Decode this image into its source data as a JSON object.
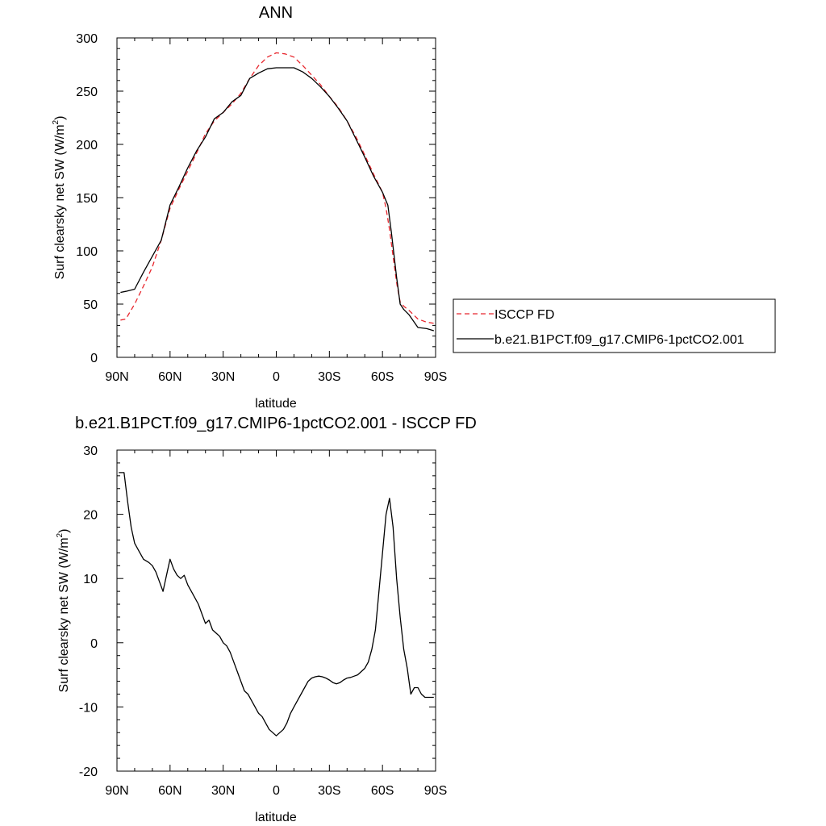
{
  "chart_data": [
    {
      "type": "line",
      "title": "ANN",
      "xlabel": "latitude",
      "ylabel": "Surf clearsky net SW (W/m",
      "ylabel_sup": "2",
      "ylabel_close": ")",
      "xlim": [
        -90,
        90
      ],
      "ylim": [
        0,
        300
      ],
      "x_ticks": [
        -90,
        -60,
        -30,
        0,
        30,
        60,
        90
      ],
      "x_tick_labels": [
        "90N",
        "60N",
        "30N",
        "0",
        "30S",
        "60S",
        "90S"
      ],
      "y_ticks": [
        0,
        50,
        100,
        150,
        200,
        250,
        300
      ],
      "y_tick_labels": [
        "0",
        "50",
        "100",
        "150",
        "200",
        "250",
        "300"
      ],
      "grid": false,
      "legend_position": "right",
      "series": [
        {
          "name": "ISCCP FD",
          "color": "#e8262d",
          "dash": "dashed",
          "x": [
            -88,
            -85,
            -80,
            -75,
            -70,
            -65,
            -60,
            -55,
            -50,
            -45,
            -40,
            -35,
            -30,
            -25,
            -20,
            -15,
            -10,
            -5,
            0,
            5,
            10,
            15,
            20,
            25,
            30,
            35,
            40,
            45,
            50,
            55,
            60,
            62,
            64,
            66,
            68,
            70,
            72,
            75,
            80,
            85,
            89
          ],
          "values": [
            35,
            36,
            50,
            67,
            85,
            110,
            140,
            158,
            175,
            192,
            210,
            222,
            230,
            238,
            248,
            262,
            274,
            282,
            286,
            285,
            282,
            274,
            265,
            256,
            245,
            235,
            222,
            207,
            190,
            172,
            155,
            140,
            120,
            95,
            70,
            52,
            48,
            44,
            36,
            33,
            32
          ]
        },
        {
          "name": "b.e21.B1PCT.f09_g17.CMIP6-1pctCO2.001",
          "color": "#000000",
          "dash": "solid",
          "x": [
            -88,
            -85,
            -80,
            -75,
            -70,
            -65,
            -60,
            -55,
            -50,
            -45,
            -40,
            -35,
            -30,
            -25,
            -20,
            -15,
            -10,
            -5,
            0,
            5,
            10,
            15,
            20,
            25,
            30,
            35,
            40,
            45,
            50,
            55,
            60,
            63,
            65,
            68,
            70,
            72,
            75,
            80,
            85,
            89
          ],
          "values": [
            61,
            62,
            64,
            80,
            95,
            110,
            143,
            160,
            178,
            194,
            207,
            224,
            230,
            240,
            246,
            262,
            267,
            271,
            272,
            272,
            272,
            268,
            262,
            254,
            245,
            234,
            222,
            205,
            188,
            170,
            155,
            143,
            118,
            75,
            50,
            45,
            40,
            28,
            27,
            25
          ]
        }
      ]
    },
    {
      "type": "line",
      "title": "b.e21.B1PCT.f09_g17.CMIP6-1pctCO2.001 - ISCCP FD",
      "xlabel": "latitude",
      "ylabel": "Surf clearsky net SW (W/m",
      "ylabel_sup": "2",
      "ylabel_close": ")",
      "xlim": [
        -90,
        90
      ],
      "ylim": [
        -20,
        30
      ],
      "x_ticks": [
        -90,
        -60,
        -30,
        0,
        30,
        60,
        90
      ],
      "x_tick_labels": [
        "90N",
        "60N",
        "30N",
        "0",
        "30S",
        "60S",
        "90S"
      ],
      "y_ticks": [
        -20,
        -10,
        0,
        10,
        20,
        30
      ],
      "y_tick_labels": [
        "-20",
        "-10",
        "0",
        "10",
        "20",
        "30"
      ],
      "grid": false,
      "series": [
        {
          "color": "#000000",
          "dash": "solid",
          "x": [
            -89,
            -86,
            -84,
            -82,
            -80,
            -77,
            -75,
            -72,
            -70,
            -68,
            -66,
            -64,
            -62,
            -60,
            -58,
            -56,
            -54,
            -52,
            -50,
            -48,
            -46,
            -44,
            -42,
            -40,
            -38,
            -36,
            -34,
            -32,
            -30,
            -28,
            -26,
            -24,
            -22,
            -20,
            -18,
            -16,
            -14,
            -12,
            -10,
            -8,
            -6,
            -4,
            -2,
            0,
            2,
            4,
            6,
            8,
            10,
            12,
            14,
            16,
            18,
            20,
            22,
            24,
            26,
            28,
            30,
            32,
            34,
            36,
            38,
            40,
            42,
            44,
            46,
            48,
            50,
            52,
            54,
            56,
            58,
            60,
            62,
            64,
            66,
            68,
            70,
            72,
            74,
            76,
            78,
            80,
            82,
            84,
            86,
            88,
            89
          ],
          "values": [
            26.5,
            26.5,
            22,
            18,
            15.5,
            14,
            13,
            12.5,
            12,
            11,
            9.5,
            8,
            10.5,
            13,
            11.5,
            10.5,
            10,
            10.5,
            9,
            8,
            7,
            6,
            4.5,
            3,
            3.5,
            2,
            1.5,
            1,
            0,
            -0.5,
            -1.5,
            -3,
            -4.5,
            -6,
            -7.5,
            -8,
            -9,
            -10,
            -11,
            -11.5,
            -12.5,
            -13.5,
            -14,
            -14.5,
            -14,
            -13.5,
            -12.5,
            -11,
            -10,
            -9,
            -8,
            -7,
            -6,
            -5.5,
            -5.3,
            -5.2,
            -5.3,
            -5.5,
            -5.8,
            -6.2,
            -6.4,
            -6.2,
            -5.8,
            -5.5,
            -5.4,
            -5.2,
            -5,
            -4.5,
            -4,
            -3,
            -1,
            2,
            8,
            14,
            20,
            22.5,
            18,
            10,
            4,
            -1,
            -4,
            -8,
            -7,
            -7,
            -8,
            -8.5,
            -8.5,
            -8.5,
            -8.5
          ]
        }
      ]
    }
  ]
}
